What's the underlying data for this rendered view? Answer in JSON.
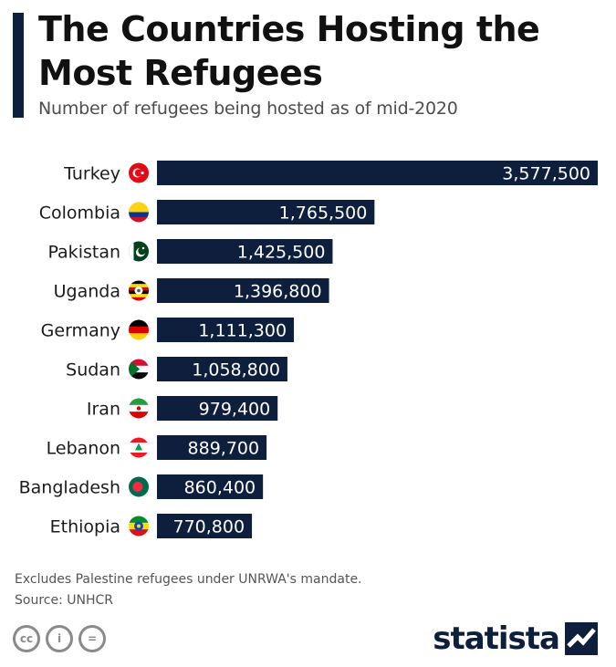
{
  "header": {
    "title": "The Countries Hosting the Most Refugees",
    "subtitle": "Number of refugees being hosted as of mid-2020"
  },
  "colors": {
    "bar": "#0e1f3d",
    "accent": "#0e1f3d",
    "label": "#1a1a1a",
    "value_text": "#ffffff"
  },
  "chart_data": {
    "type": "bar",
    "orientation": "horizontal",
    "categories": [
      "Turkey",
      "Colombia",
      "Pakistan",
      "Uganda",
      "Germany",
      "Sudan",
      "Iran",
      "Lebanon",
      "Bangladesh",
      "Ethiopia"
    ],
    "values": [
      3577500,
      1765500,
      1425500,
      1396800,
      1111300,
      1058800,
      979400,
      889700,
      860400,
      770800
    ],
    "value_labels": [
      "3,577,500",
      "1,765,500",
      "1,425,500",
      "1,396,800",
      "1,111,300",
      "1,058,800",
      "979,400",
      "889,700",
      "860,400",
      "770,800"
    ],
    "flag_icons": [
      "turkey-flag-icon",
      "colombia-flag-icon",
      "pakistan-flag-icon",
      "uganda-flag-icon",
      "germany-flag-icon",
      "sudan-flag-icon",
      "iran-flag-icon",
      "lebanon-flag-icon",
      "bangladesh-flag-icon",
      "ethiopia-flag-icon"
    ],
    "title": "The Countries Hosting the Most Refugees",
    "subtitle": "Number of refugees being hosted as of mid-2020",
    "grid": false,
    "legend": "none"
  },
  "footer": {
    "note": "Excludes Palestine refugees under UNRWA's mandate.",
    "source": "Source: UNHCR",
    "license_icons": [
      "cc-icon",
      "attribution-icon",
      "no-derivatives-icon"
    ],
    "license_glyphs": [
      "cc",
      "i",
      "="
    ],
    "brand": "statista",
    "brand_icon": "statista-logo-icon"
  }
}
